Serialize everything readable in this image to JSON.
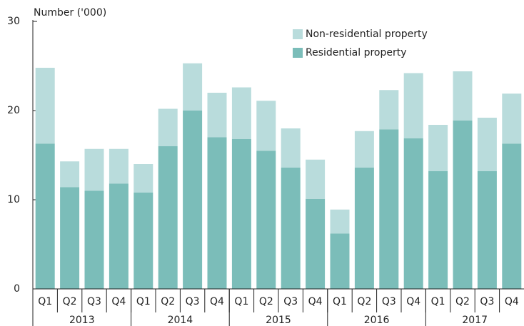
{
  "chart_data": {
    "type": "stacked_bar",
    "y_axis_label": "Number ('000)",
    "categories": [
      "Q1",
      "Q2",
      "Q3",
      "Q4",
      "Q1",
      "Q2",
      "Q3",
      "Q4",
      "Q1",
      "Q2",
      "Q3",
      "Q4",
      "Q1",
      "Q2",
      "Q3",
      "Q4",
      "Q1",
      "Q2",
      "Q3",
      "Q4"
    ],
    "groups": [
      "2013",
      "2014",
      "2015",
      "2016",
      "2017"
    ],
    "series": [
      {
        "name": "Residential property",
        "color": "#7bbdb9",
        "values": [
          16.3,
          11.4,
          11.0,
          11.8,
          10.8,
          16.0,
          20.0,
          17.0,
          16.8,
          15.5,
          13.6,
          10.1,
          6.2,
          13.6,
          17.9,
          16.9,
          13.2,
          18.9,
          13.2,
          16.3
        ]
      },
      {
        "name": "Non-residential property",
        "color": "#b9dcdc",
        "values": [
          8.5,
          2.9,
          4.7,
          3.9,
          3.2,
          4.2,
          5.3,
          5.0,
          5.8,
          5.6,
          4.4,
          4.4,
          2.7,
          4.1,
          4.4,
          7.3,
          5.2,
          5.5,
          6.0,
          5.6
        ]
      }
    ],
    "ylim": [
      0,
      30
    ],
    "yticks": [
      0,
      10,
      20,
      30
    ],
    "legend": "upper center"
  }
}
